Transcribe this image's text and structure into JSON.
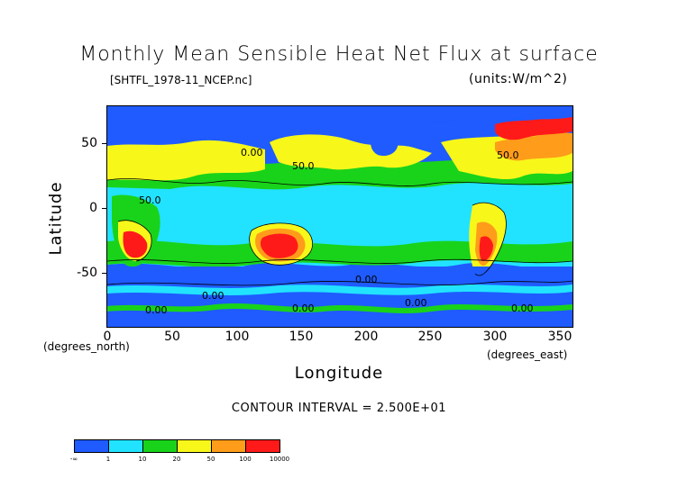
{
  "title": "Monthly Mean Sensible Heat Net Flux at surface",
  "file_label": "[SHTFL_1978-11_NCEP.nc]",
  "units_label": "(units:W/m^2)",
  "axes": {
    "ylabel": "Latitude",
    "xlabel": "Longitude",
    "y_unit": "(degrees_north)",
    "x_unit": "(degrees_east)",
    "y_ticks": [
      "50",
      "0",
      "-50"
    ],
    "x_ticks": [
      "0",
      "50",
      "100",
      "150",
      "200",
      "250",
      "300",
      "350"
    ]
  },
  "contour_interval": "CONTOUR INTERVAL = 2.500E+01",
  "contour_labels": [
    "50.0",
    "50.0",
    "0.00",
    "0.00",
    "0.00",
    "0.00",
    "0.00",
    "0.00",
    "50.0",
    "0.00"
  ],
  "legend": {
    "labels": [
      "-∞",
      "1",
      "10",
      "20",
      "50",
      "100",
      "10000"
    ],
    "colors": [
      "#1f5bff",
      "#21e3ff",
      "#19d31a",
      "#f7f71a",
      "#ff9c1a",
      "#ff1a1a"
    ]
  },
  "colors": {
    "ocean_low": "#1f5bff",
    "cyan": "#21e3ff",
    "green": "#19d31a",
    "yellow": "#f7f71a",
    "orange": "#ff9c1a",
    "red": "#ff1a1a"
  }
}
